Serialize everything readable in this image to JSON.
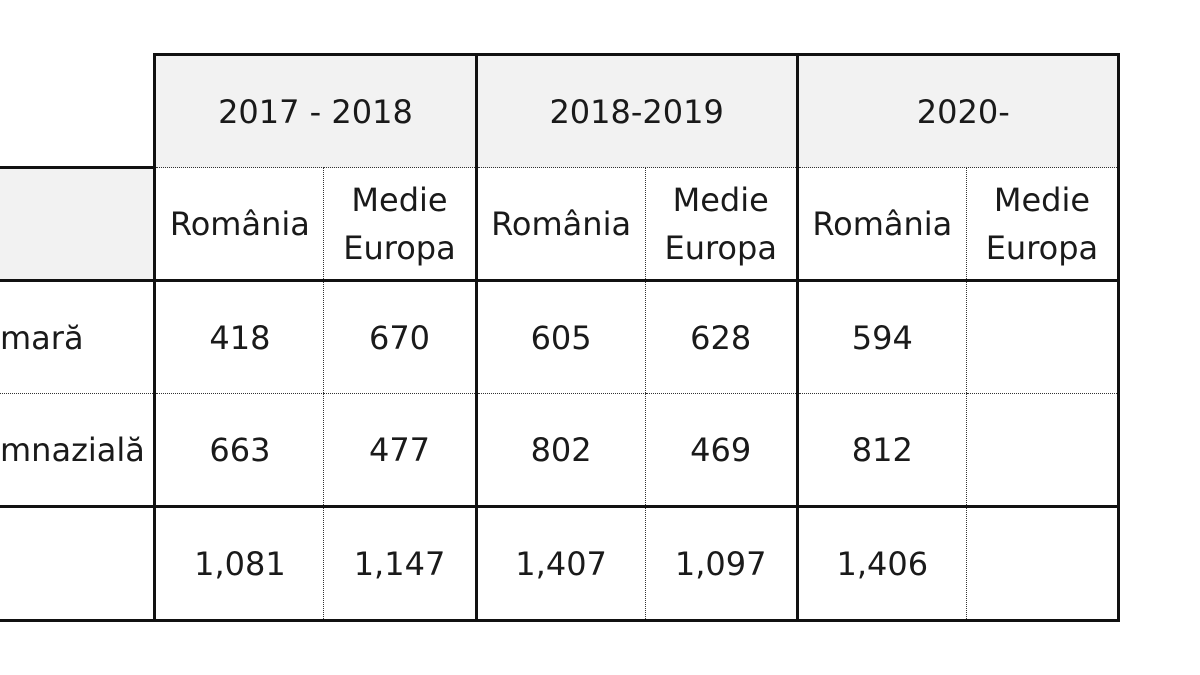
{
  "table": {
    "periods": [
      "2017 - 2018",
      "2018-2019",
      "2020-"
    ],
    "subheaders": {
      "romania": "România",
      "medie_europa_line1": "Medie",
      "medie_europa_line2": "Europa"
    },
    "rows": [
      {
        "label": "mară",
        "values": [
          "418",
          "670",
          "605",
          "628",
          "594"
        ]
      },
      {
        "label": "mnazială",
        "values": [
          "663",
          "477",
          "802",
          "469",
          "812"
        ]
      },
      {
        "label": "",
        "values": [
          "1,081",
          "1,147",
          "1,407",
          "1,097",
          "1,406"
        ]
      }
    ]
  }
}
